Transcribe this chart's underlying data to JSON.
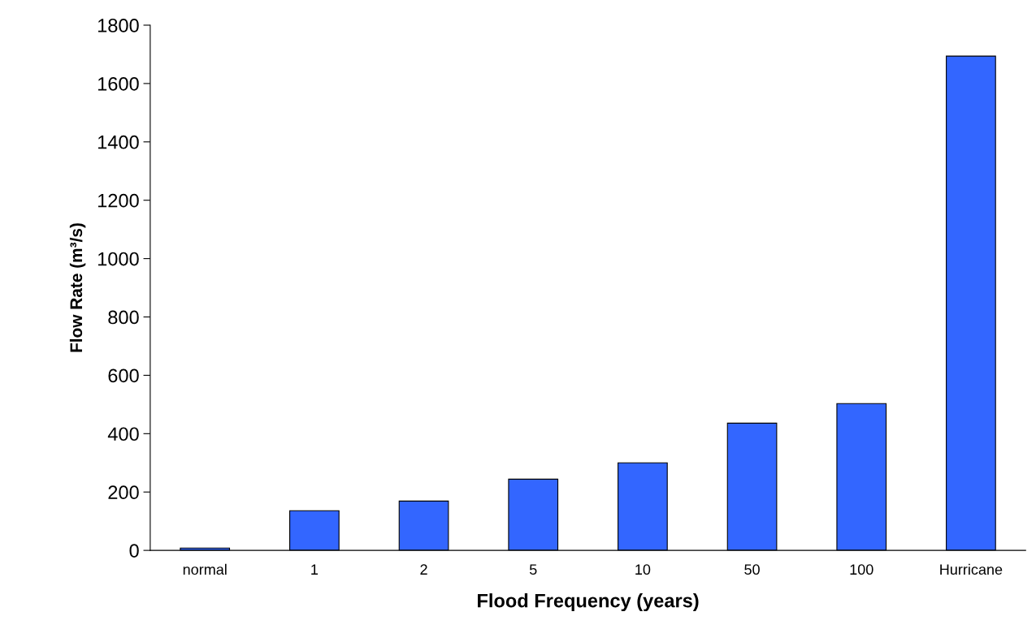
{
  "chart_data": {
    "type": "bar",
    "xlabel": "Flood Frequency (years)",
    "ylabel": "Flow Rate (m³/s)",
    "categories": [
      "normal",
      "1",
      "2",
      "5",
      "10",
      "50",
      "100",
      "Hurricane"
    ],
    "values": [
      8,
      136,
      169,
      244,
      300,
      436,
      503,
      1694
    ],
    "color": "#3366ff",
    "ylim": [
      0,
      1800
    ],
    "yticks": [
      0,
      200,
      400,
      600,
      800,
      1000,
      1200,
      1400,
      1600,
      1800
    ],
    "grid": false
  }
}
